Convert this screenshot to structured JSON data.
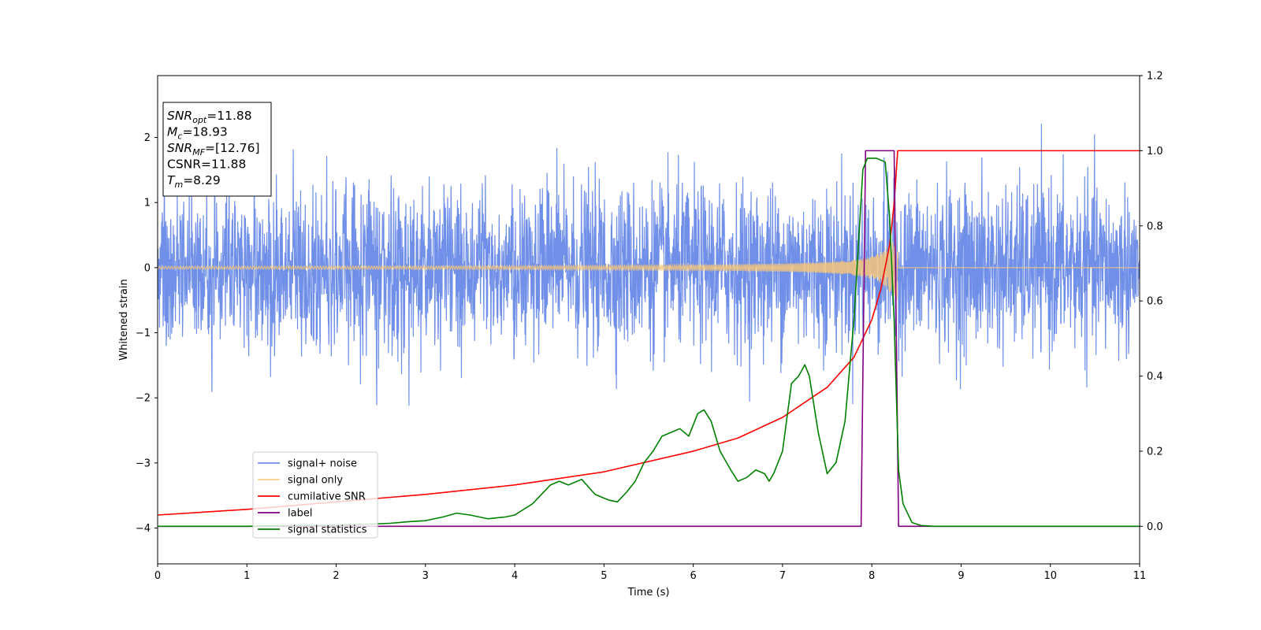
{
  "chart_data": {
    "type": "line",
    "title": "",
    "xlabel": "Time (s)",
    "ylabel": "Whitened strain",
    "ylabel_right": "",
    "xlim": [
      0,
      11
    ],
    "ylim": [
      -4.55,
      2.95
    ],
    "ylim_right": [
      -0.1,
      1.2
    ],
    "x_ticks": [
      0,
      1,
      2,
      3,
      4,
      5,
      6,
      7,
      8,
      9,
      10,
      11
    ],
    "y_ticks": [
      -4,
      -3,
      -2,
      -1,
      0,
      1,
      2
    ],
    "y_right_ticks": [
      0.0,
      0.2,
      0.4,
      0.6,
      0.8,
      1.0,
      1.2
    ],
    "grid": false,
    "legend_position": "lower-left",
    "annotation": {
      "lines": [
        {
          "main": "SNR",
          "sub": "opt",
          "rest": "=11.88"
        },
        {
          "main": "M",
          "sub": "c",
          "rest": "=18.93"
        },
        {
          "main": "SNR",
          "sub": "MF",
          "rest": "=[12.76]"
        },
        {
          "main": "CSNR",
          "sub": "",
          "rest": "=11.88"
        },
        {
          "main": "T",
          "sub": "m",
          "rest": "=8.29"
        }
      ]
    },
    "series": [
      {
        "name": "signal+ noise",
        "axis": "left",
        "color": "#6f8fe8",
        "style": "noise",
        "noise_sigma": 0.62,
        "noise_max_abs": 2.3
      },
      {
        "name": "signal only",
        "axis": "left",
        "color": "#f5c57a",
        "style": "chirp",
        "merger_time": 8.29,
        "start_amplitude": 0.02,
        "peak_amplitude": 0.6
      },
      {
        "name": "cumilative SNR",
        "axis": "right",
        "color": "#ff0000",
        "x": [
          0,
          1,
          2,
          3,
          4,
          5,
          6,
          6.5,
          7,
          7.5,
          7.8,
          8.0,
          8.1,
          8.2,
          8.25,
          8.29,
          11
        ],
        "y": [
          0.03,
          0.045,
          0.065,
          0.085,
          0.11,
          0.145,
          0.2,
          0.235,
          0.29,
          0.37,
          0.45,
          0.55,
          0.63,
          0.75,
          0.86,
          1.0,
          1.0
        ]
      },
      {
        "name": "label",
        "axis": "right",
        "color": "#800080",
        "x": [
          0,
          7.88,
          7.93,
          8.25,
          8.3,
          11
        ],
        "y": [
          0,
          0,
          1,
          1,
          0,
          0
        ]
      },
      {
        "name": "signal statistics",
        "axis": "right",
        "color": "#008000",
        "x": [
          0,
          1,
          1.5,
          2,
          2.3,
          2.6,
          2.8,
          3.0,
          3.2,
          3.35,
          3.5,
          3.7,
          3.9,
          4.0,
          4.2,
          4.4,
          4.5,
          4.6,
          4.75,
          4.9,
          5.05,
          5.15,
          5.25,
          5.35,
          5.45,
          5.55,
          5.65,
          5.75,
          5.85,
          5.95,
          6.05,
          6.12,
          6.2,
          6.3,
          6.42,
          6.5,
          6.6,
          6.7,
          6.8,
          6.85,
          6.9,
          7.0,
          7.1,
          7.18,
          7.25,
          7.3,
          7.4,
          7.5,
          7.6,
          7.7,
          7.8,
          7.9,
          7.95,
          8.05,
          8.15,
          8.2,
          8.25,
          8.3,
          8.35,
          8.45,
          8.55,
          8.7,
          9,
          10,
          11
        ],
        "y": [
          0,
          0,
          0.002,
          0.003,
          0.005,
          0.008,
          0.012,
          0.015,
          0.025,
          0.035,
          0.03,
          0.02,
          0.025,
          0.03,
          0.06,
          0.11,
          0.12,
          0.11,
          0.125,
          0.085,
          0.07,
          0.065,
          0.09,
          0.12,
          0.17,
          0.2,
          0.24,
          0.25,
          0.26,
          0.24,
          0.3,
          0.31,
          0.28,
          0.2,
          0.15,
          0.12,
          0.13,
          0.15,
          0.14,
          0.12,
          0.14,
          0.2,
          0.38,
          0.4,
          0.43,
          0.4,
          0.25,
          0.14,
          0.17,
          0.28,
          0.55,
          0.95,
          0.98,
          0.98,
          0.97,
          0.82,
          0.55,
          0.15,
          0.06,
          0.01,
          0.002,
          0,
          0,
          0,
          0
        ]
      }
    ]
  }
}
